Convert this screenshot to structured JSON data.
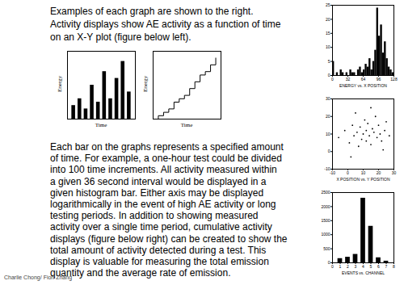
{
  "text": {
    "intro": [
      "Examples of each graph are shown to the right.",
      "Activity displays show AE activity as a function of time",
      "on an X-Y plot (figure below left)."
    ],
    "body": [
      "Each bar on the graphs represents a specified amount",
      "of time. For example, a one-hour test could be divided",
      "into 100 time increments.  All activity measured within",
      "a given 36 second interval would be displayed in a",
      "given histogram bar. Either axis may be displayed",
      "logarithmically in the event of high AE activity or long",
      "testing periods. In addition to showing measured",
      "activity over a single time period, cumulative activity",
      "displays (figure below right) can be created to show the",
      "total amount of activity detected during a test. This",
      "display is valuable for measuring the total emission",
      "quantity and the average rate of emission."
    ],
    "footer": "Charlie Chong/ Fion Zhang"
  },
  "chart_data": [
    {
      "type": "bar",
      "x_label": "Time",
      "y_label": "Energy",
      "x": [
        1,
        2,
        3,
        4,
        5,
        6,
        7,
        8,
        9,
        10
      ],
      "values": [
        2,
        3,
        1.5,
        5,
        2.5,
        7,
        3,
        6,
        8.5,
        4
      ],
      "xlim": [
        0,
        11
      ],
      "ylim": [
        0,
        10
      ],
      "tick_labels": false,
      "color": "#000000"
    },
    {
      "type": "line",
      "x_label": "Time",
      "y_label": "Energy",
      "line_style": "step",
      "x": [
        0,
        1,
        2,
        3,
        4,
        5,
        6,
        7,
        8,
        9,
        10,
        11,
        12
      ],
      "values": [
        0,
        0.5,
        1,
        1.5,
        2.5,
        3,
        3.5,
        4.5,
        5.5,
        6.5,
        7,
        8,
        9
      ],
      "xlim": [
        0,
        13
      ],
      "ylim": [
        0,
        10
      ],
      "tick_labels": false,
      "color": "#000000"
    },
    {
      "type": "histogram",
      "x_label": "ENERGY vs. X POSITION",
      "bins": [
        0,
        4,
        8,
        12,
        16,
        20,
        24,
        28,
        32,
        36,
        40,
        44,
        48,
        52,
        56,
        60,
        64,
        68,
        72,
        76,
        80,
        84,
        88,
        92,
        96,
        100,
        104,
        108,
        112,
        116,
        120,
        124,
        128
      ],
      "counts": [
        5,
        0,
        1,
        0,
        2,
        1,
        0,
        1,
        0,
        2,
        1,
        1,
        0,
        2,
        3,
        1,
        2,
        4,
        3,
        6,
        2,
        5,
        9,
        24,
        14,
        18,
        8,
        12,
        6,
        3,
        2,
        1
      ],
      "xlim": [
        0,
        128
      ],
      "xticks": [
        0,
        32,
        64,
        96,
        128
      ],
      "ylim": [
        0,
        25
      ],
      "yticks": [
        0,
        5,
        10,
        15,
        20,
        25
      ],
      "color": "#000000"
    },
    {
      "type": "scatter",
      "x_label": "X POSITION vs. Y POSITION",
      "marker": "dot",
      "x": [
        -6,
        -2,
        1,
        3,
        4,
        6,
        7,
        8,
        9,
        10,
        11,
        12,
        12,
        13,
        14,
        15,
        16,
        17,
        18,
        19,
        20,
        21,
        22,
        24,
        25,
        27,
        2,
        5,
        15,
        23
      ],
      "values": [
        8,
        12,
        5,
        15,
        9,
        11,
        3,
        14,
        7,
        10,
        18,
        6,
        12,
        16,
        9,
        4,
        13,
        11,
        20,
        8,
        15,
        10,
        6,
        12,
        17,
        9,
        -3,
        22,
        25,
        1
      ],
      "xlim": [
        -10,
        30
      ],
      "xticks": [
        -10,
        0,
        10,
        20,
        30
      ],
      "ylim": [
        -10,
        30
      ],
      "yticks": [
        -10,
        0,
        10,
        20,
        30
      ],
      "color": "#000000"
    },
    {
      "type": "bar",
      "x_label": "EVENTS vs. CHANNEL",
      "x": [
        1,
        2,
        3,
        4,
        5,
        6,
        7
      ],
      "values": [
        150,
        200,
        300,
        2300,
        1300,
        180,
        60
      ],
      "xlim": [
        0,
        8
      ],
      "xticks": [
        0,
        1,
        2,
        3,
        4,
        5,
        6,
        7,
        8
      ],
      "ylim": [
        0,
        2500
      ],
      "yticks": [
        0,
        500,
        1000,
        1500,
        2000,
        2500
      ],
      "color": "#000000"
    }
  ]
}
